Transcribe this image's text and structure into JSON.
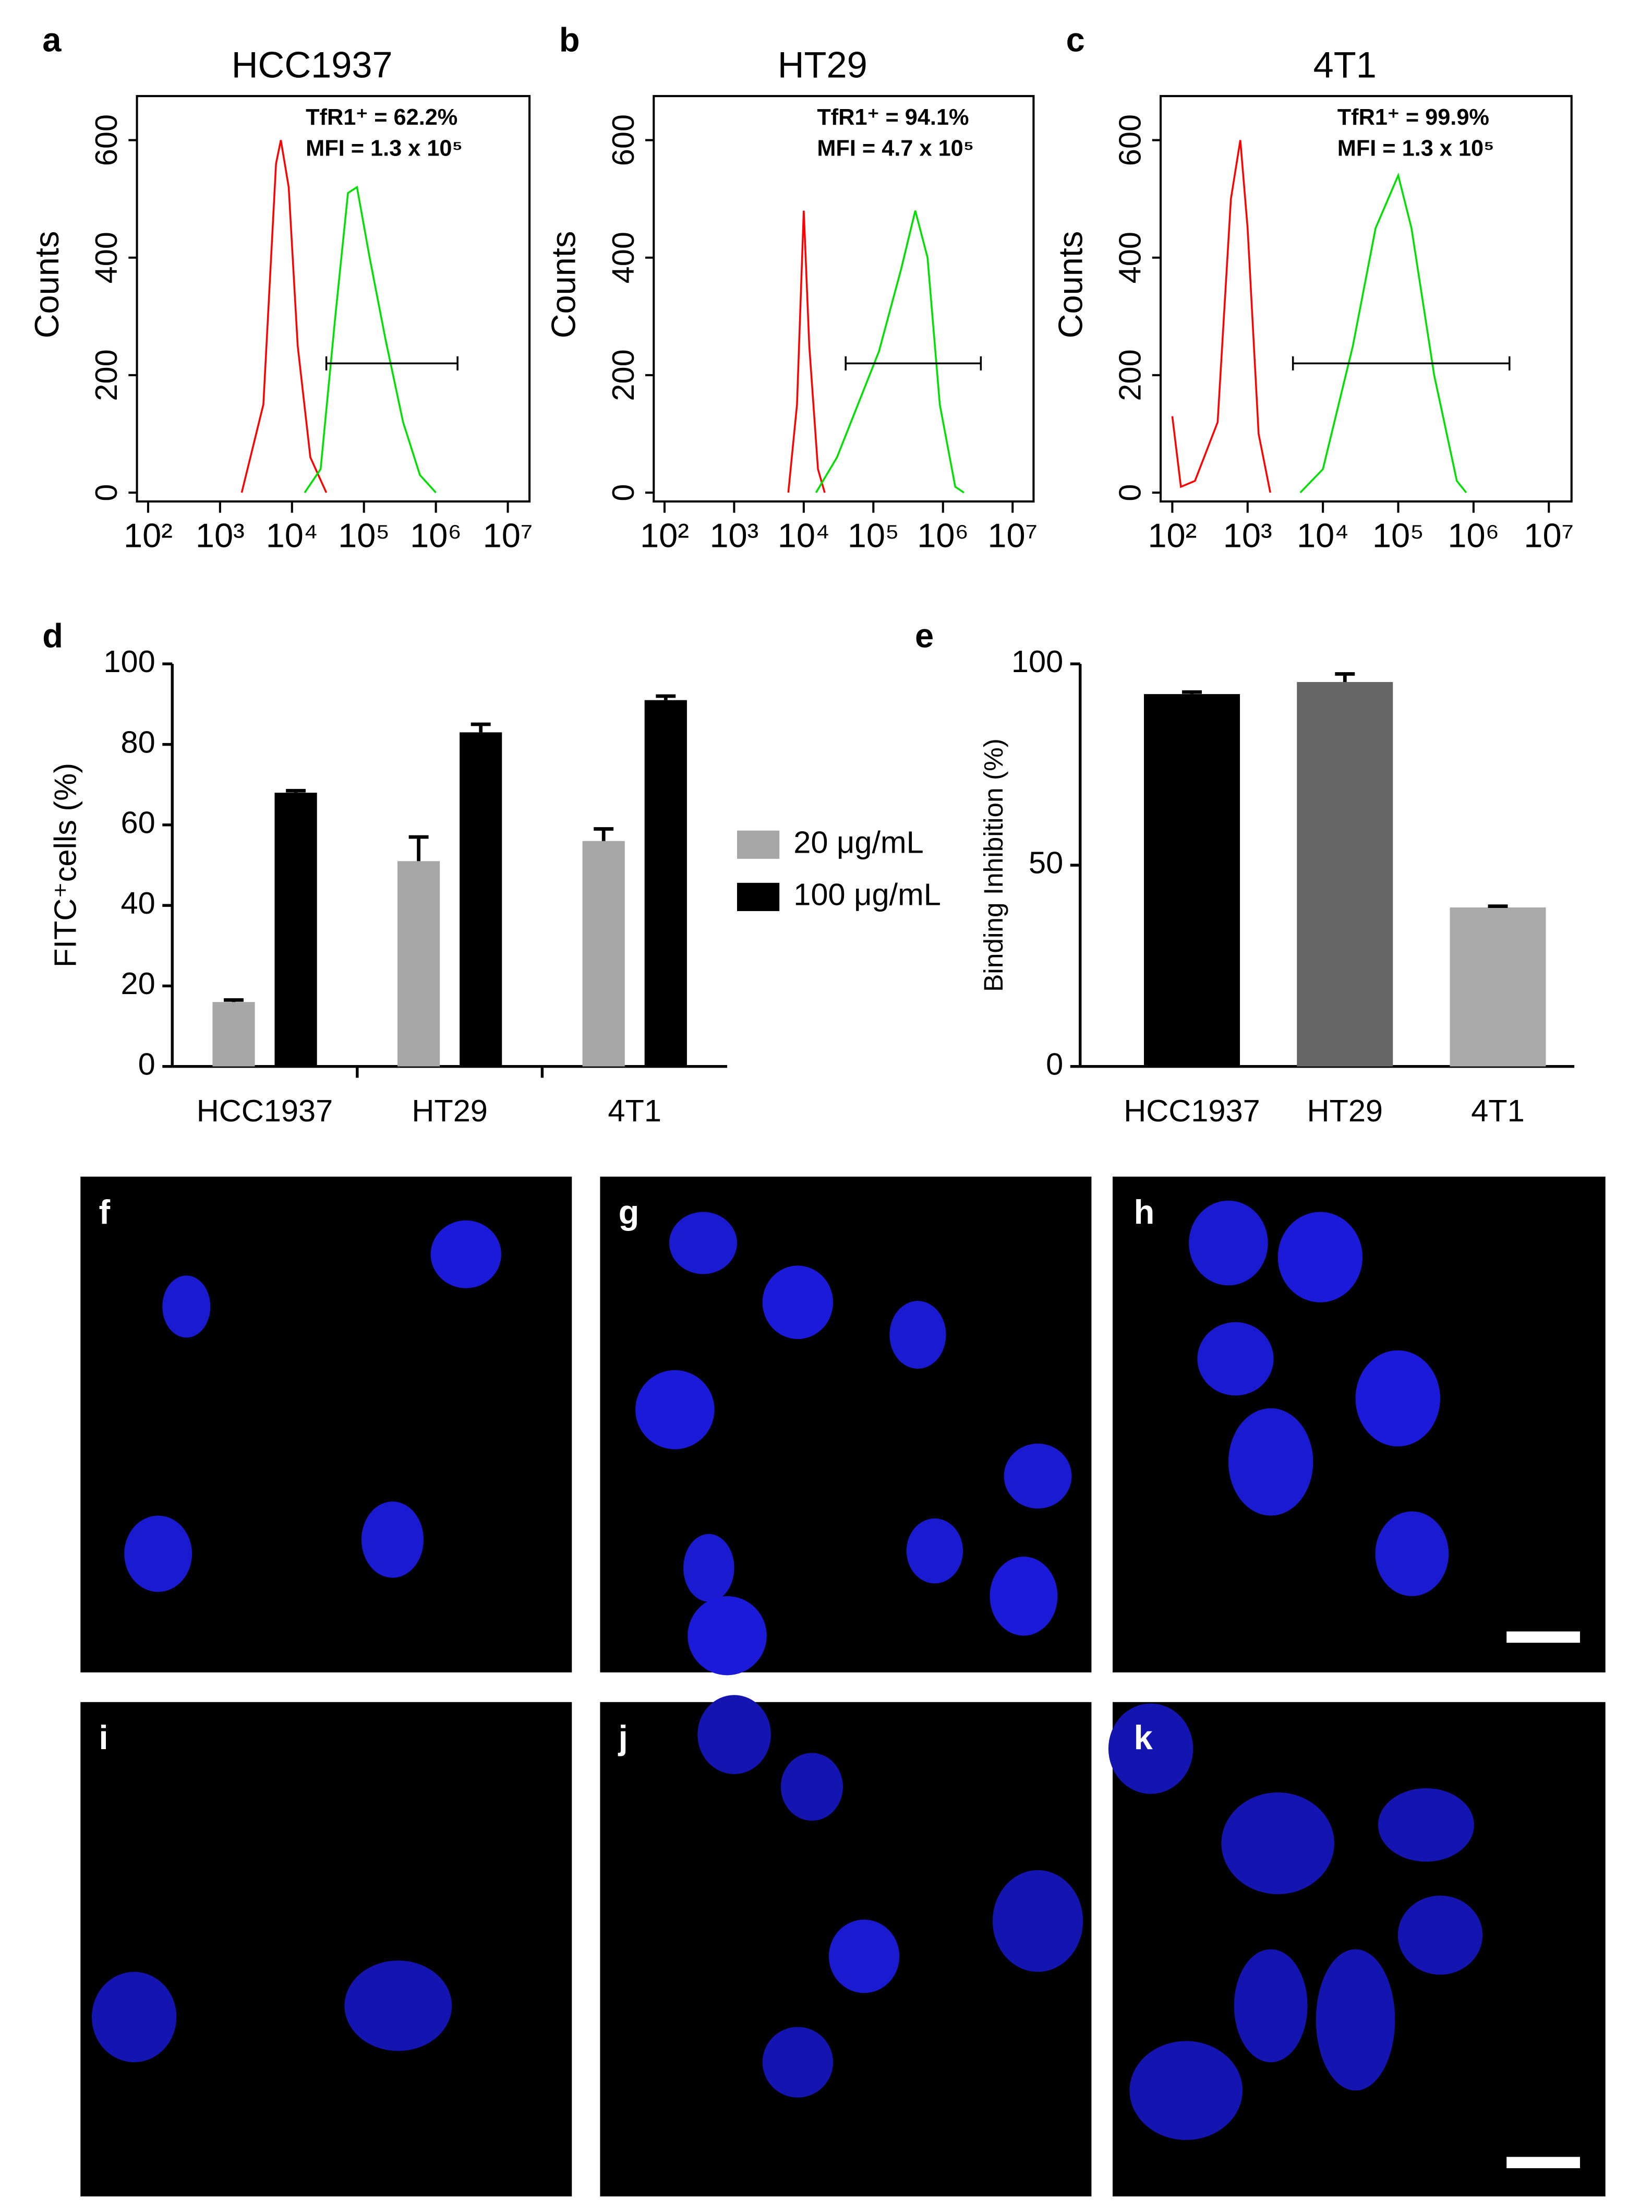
{
  "chart_data": [
    {
      "type": "line",
      "panel": "a",
      "title": "HCC1937",
      "ylabel": "Counts",
      "xscale": "log",
      "annotations": [
        "TfR1⁺ = 62.2%",
        "MFI = 1.3 x 10⁵"
      ],
      "xlim": [
        70,
        20000000
      ],
      "ylim": [
        -15,
        675
      ],
      "xticks": [
        {
          "value": 100,
          "label": "10²"
        },
        {
          "value": 1000,
          "label": "10³"
        },
        {
          "value": 10000,
          "label": "10⁴"
        },
        {
          "value": 100000,
          "label": "10⁵"
        },
        {
          "value": 1000000,
          "label": "10⁶"
        },
        {
          "value": 10000000,
          "label": "10⁷"
        }
      ],
      "yticks": [
        0,
        200,
        400,
        600
      ],
      "series": [
        {
          "color": "#ff0000",
          "x": [
            2000,
            4000,
            6000,
            7000,
            9000,
            12000,
            18000,
            30000
          ],
          "values": [
            0,
            150,
            560,
            600,
            520,
            250,
            60,
            0
          ]
        },
        {
          "color": "#00e000",
          "x": [
            15000,
            25000,
            40000,
            60000,
            80000,
            120000,
            200000,
            350000,
            600000,
            1000000
          ],
          "values": [
            0,
            40,
            300,
            510,
            520,
            400,
            260,
            120,
            30,
            0
          ]
        }
      ],
      "gate": {
        "x": [
          30000,
          2000000
        ],
        "y": 220
      }
    },
    {
      "type": "line",
      "panel": "b",
      "title": "HT29",
      "ylabel": "Counts",
      "xscale": "log",
      "annotations": [
        "TfR1⁺ = 94.1%",
        "MFI = 4.7 x 10⁵"
      ],
      "xlim": [
        70,
        20000000
      ],
      "ylim": [
        -15,
        675
      ],
      "xticks": [
        {
          "value": 100,
          "label": "10²"
        },
        {
          "value": 1000,
          "label": "10³"
        },
        {
          "value": 10000,
          "label": "10⁴"
        },
        {
          "value": 100000,
          "label": "10⁵"
        },
        {
          "value": 1000000,
          "label": "10⁶"
        },
        {
          "value": 10000000,
          "label": "10⁷"
        }
      ],
      "yticks": [
        0,
        200,
        400,
        600
      ],
      "series": [
        {
          "color": "#ff0000",
          "x": [
            6000,
            8000,
            10000,
            12000,
            16000,
            20000
          ],
          "values": [
            0,
            150,
            480,
            250,
            40,
            0
          ]
        },
        {
          "color": "#00e000",
          "x": [
            15000,
            30000,
            60000,
            120000,
            250000,
            400000,
            600000,
            900000,
            1500000,
            2000000
          ],
          "values": [
            0,
            60,
            150,
            240,
            380,
            480,
            400,
            150,
            10,
            0
          ]
        }
      ],
      "gate": {
        "x": [
          40000,
          3500000
        ],
        "y": 220
      }
    },
    {
      "type": "line",
      "panel": "c",
      "title": "4T1",
      "ylabel": "Counts",
      "xscale": "log",
      "annotations": [
        "TfR1⁺ = 99.9%",
        "MFI = 1.3 x 10⁵"
      ],
      "xlim": [
        70,
        20000000
      ],
      "ylim": [
        -15,
        675
      ],
      "xticks": [
        {
          "value": 100,
          "label": "10²"
        },
        {
          "value": 1000,
          "label": "10³"
        },
        {
          "value": 10000,
          "label": "10⁴"
        },
        {
          "value": 100000,
          "label": "10⁵"
        },
        {
          "value": 1000000,
          "label": "10⁶"
        },
        {
          "value": 10000000,
          "label": "10⁷"
        }
      ],
      "yticks": [
        0,
        200,
        400,
        600
      ],
      "series": [
        {
          "color": "#ff0000",
          "x": [
            100,
            130,
            200,
            400,
            600,
            800,
            1000,
            1400,
            2000
          ],
          "values": [
            130,
            10,
            20,
            120,
            500,
            600,
            450,
            100,
            0
          ]
        },
        {
          "color": "#00e000",
          "x": [
            5000,
            10000,
            25000,
            50000,
            100000,
            150000,
            300000,
            600000,
            800000
          ],
          "values": [
            0,
            40,
            250,
            450,
            540,
            450,
            200,
            20,
            0
          ]
        }
      ],
      "gate": {
        "x": [
          4000,
          3000000
        ],
        "y": 220
      }
    },
    {
      "type": "bar",
      "panel": "d",
      "ylabel": "FITC⁺cells (%)",
      "categories": [
        "HCC1937",
        "HT29",
        "4T1"
      ],
      "series": [
        {
          "name": "20 μg/mL",
          "color": "#a6a6a6",
          "values": [
            16,
            51,
            56
          ],
          "errors": [
            0.5,
            6,
            3
          ]
        },
        {
          "name": "100 μg/mL",
          "color": "#000000",
          "values": [
            68,
            83,
            91
          ],
          "errors": [
            0.5,
            2,
            1
          ]
        }
      ],
      "ylim": [
        0,
        100
      ],
      "yticks": [
        0,
        20,
        40,
        60,
        80,
        100
      ]
    },
    {
      "type": "bar",
      "panel": "e",
      "ylabel": "Binding Inhibition (%)",
      "categories": [
        "HCC1937",
        "HT29",
        "4T1"
      ],
      "values": [
        92.5,
        95.5,
        39.5
      ],
      "errors": [
        0.5,
        2,
        0.3
      ],
      "colors": [
        "#000000",
        "#666666",
        "#aaaaaa"
      ],
      "ylim": [
        0,
        100
      ],
      "yticks": [
        0,
        50,
        100
      ]
    }
  ],
  "images": [
    "f",
    "g",
    "h",
    "i",
    "j",
    "k"
  ]
}
